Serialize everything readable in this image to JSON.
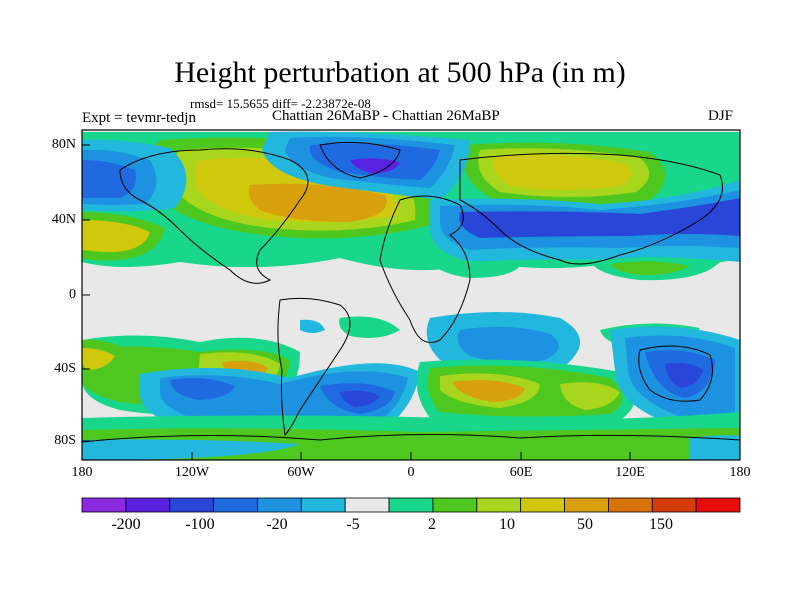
{
  "title": "Height perturbation at 500 hPa (in m)",
  "stats_line": "rmsd= 15.5655 diff= -2.23872e-08",
  "experiment": "Expt = tevmr-tedjn",
  "subtitle": "Chattian  26MaBP - Chattian  26MaBP",
  "season": "DJF",
  "lat_labels": [
    "80N",
    "40N",
    "0",
    "40S",
    "80S"
  ],
  "lon_labels": [
    "180",
    "120W",
    "60W",
    "0",
    "60E",
    "120E",
    "180"
  ],
  "colorbar": {
    "colors": [
      "#8a2be2",
      "#5a22e0",
      "#2a46d8",
      "#1f6ae0",
      "#1c92e0",
      "#22b8de",
      "#e8e8e8",
      "#18d68a",
      "#4ec81e",
      "#a8d61c",
      "#cfc80c",
      "#d8a00c",
      "#d8720a",
      "#d63c0a",
      "#e80c0c"
    ],
    "labels": [
      "-200",
      "-100",
      "-20",
      "-5",
      "2",
      "10",
      "50",
      "150"
    ]
  },
  "field_colors": {
    "neutral": "#e8e8e8",
    "pos_light": "#18d68a",
    "pos_med": "#4ec81e",
    "pos_high": "#a8d61c",
    "pos_higher": "#cfc80c",
    "pos_top": "#d8a00c",
    "pos_peak": "#d8720a",
    "neg_light": "#22b8de",
    "neg_med": "#1c92e0",
    "neg_high": "#1f6ae0",
    "neg_top": "#2a46d8",
    "neg_peak": "#5a22e0",
    "coast": "#000000"
  }
}
